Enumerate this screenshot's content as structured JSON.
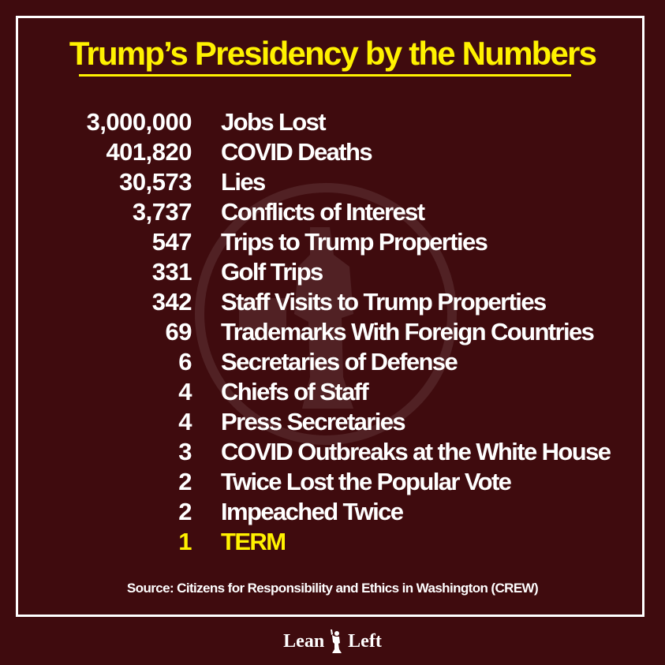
{
  "title": "Trump’s Presidency by the Numbers",
  "stats": [
    {
      "number": "3,000,000",
      "label": "Jobs Lost"
    },
    {
      "number": "401,820",
      "label": "COVID Deaths"
    },
    {
      "number": "30,573",
      "label": "Lies"
    },
    {
      "number": "3,737",
      "label": "Conflicts of Interest"
    },
    {
      "number": "547",
      "label": "Trips to Trump Properties"
    },
    {
      "number": "331",
      "label": "Golf Trips"
    },
    {
      "number": "342",
      "label": "Staff Visits to Trump Properties"
    },
    {
      "number": "69",
      "label": "Trademarks With Foreign Countries"
    },
    {
      "number": "6",
      "label": "Secretaries of Defense"
    },
    {
      "number": "4",
      "label": "Chiefs of Staff"
    },
    {
      "number": "4",
      "label": "Press Secretaries"
    },
    {
      "number": "3",
      "label": "COVID Outbreaks at the White House"
    },
    {
      "number": "2",
      "label": "Twice Lost the Popular Vote"
    },
    {
      "number": "2",
      "label": "Impeached Twice"
    },
    {
      "number": "1",
      "label": "TERM"
    }
  ],
  "source": "Source: Citizens for Responsibility and Ethics in Washington (CREW)",
  "brand": {
    "left": "Lean",
    "right": "Left",
    "icon": "torch-figure-icon"
  },
  "colors": {
    "background": "#3f0b0e",
    "accent": "#fff200",
    "text": "#ffffff"
  }
}
